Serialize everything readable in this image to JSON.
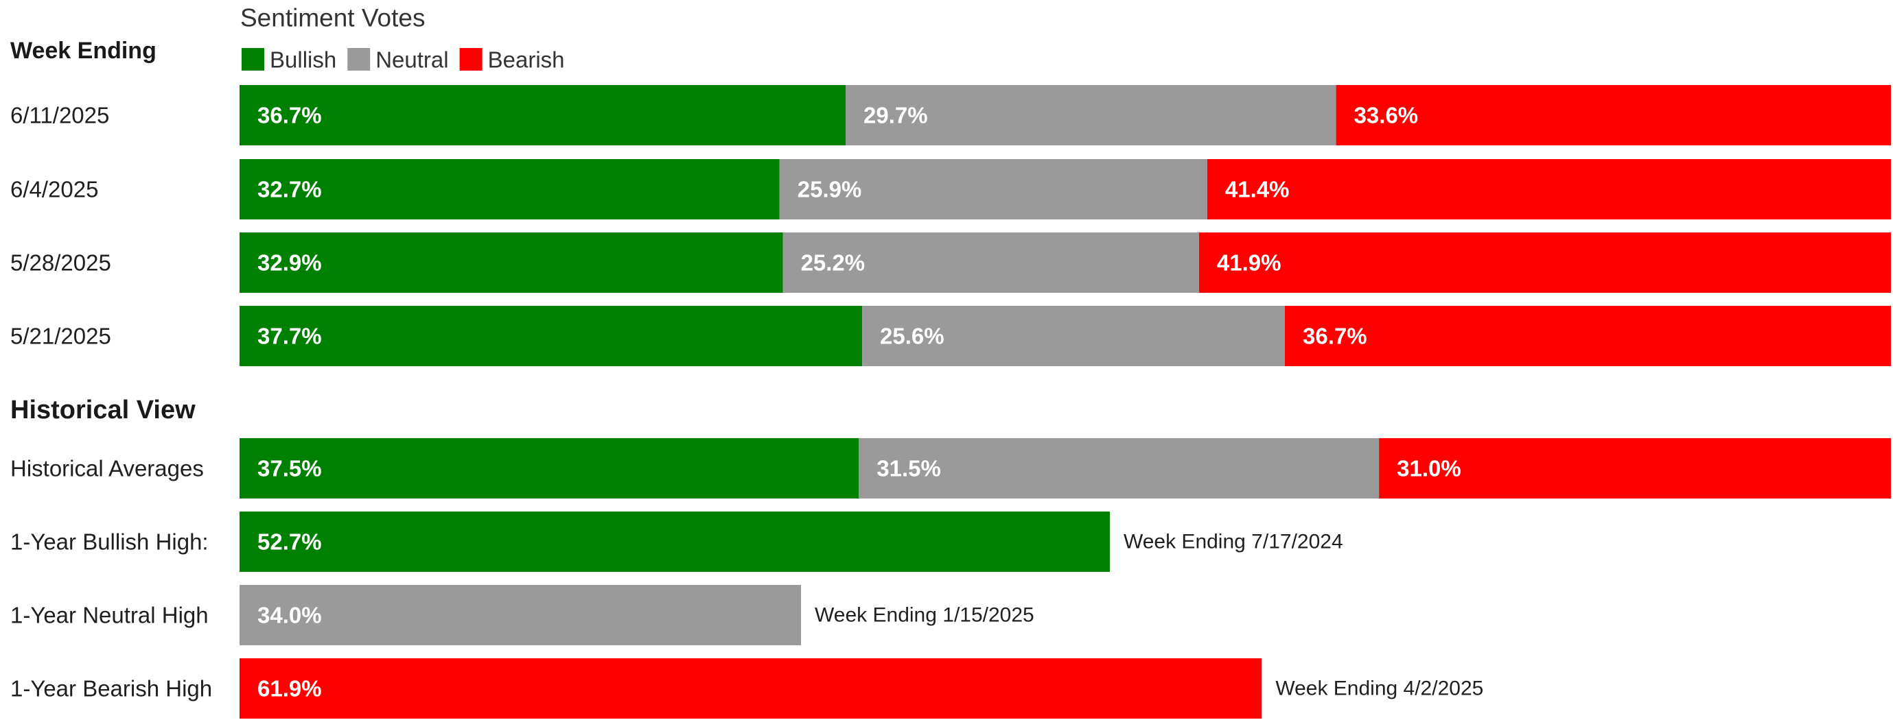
{
  "chart_data": {
    "type": "bar",
    "subtype": "stacked-horizontal-100",
    "title": "Sentiment Votes",
    "row_header": "Week Ending",
    "section_header": "Historical View",
    "legend": {
      "placement": "top-left",
      "items": [
        {
          "name": "Bullish",
          "color": "#008000"
        },
        {
          "name": "Neutral",
          "color": "#9a9a9a"
        },
        {
          "name": "Bearish",
          "color": "#ff0000"
        }
      ]
    },
    "weekly": [
      {
        "label": "6/11/2025",
        "values": [
          36.7,
          29.7,
          33.6
        ],
        "value_labels": [
          "36.7%",
          "29.7%",
          "33.6%"
        ]
      },
      {
        "label": "6/4/2025",
        "values": [
          32.7,
          25.9,
          41.4
        ],
        "value_labels": [
          "32.7%",
          "25.9%",
          "41.4%"
        ]
      },
      {
        "label": "5/28/2025",
        "values": [
          32.9,
          25.2,
          41.9
        ],
        "value_labels": [
          "32.9%",
          "25.2%",
          "41.9%"
        ]
      },
      {
        "label": "5/21/2025",
        "values": [
          37.7,
          25.6,
          36.7
        ],
        "value_labels": [
          "37.7%",
          "25.6%",
          "36.7%"
        ]
      }
    ],
    "historical_average": {
      "label": "Historical Averages",
      "values": [
        37.5,
        31.5,
        31.0
      ],
      "value_labels": [
        "37.5%",
        "31.5%",
        "31.0%"
      ]
    },
    "highs": [
      {
        "label": "1-Year Bullish High:",
        "series": "Bullish",
        "value": 52.7,
        "value_label": "52.7%",
        "note": "Week Ending 7/17/2024"
      },
      {
        "label": "1-Year Neutral High",
        "series": "Neutral",
        "value": 34.0,
        "value_label": "34.0%",
        "note": "Week Ending 1/15/2025"
      },
      {
        "label": "1-Year Bearish High",
        "series": "Bearish",
        "value": 61.9,
        "value_label": "61.9%",
        "note": "Week Ending 4/2/2025"
      }
    ],
    "xlim": [
      0,
      100
    ]
  }
}
